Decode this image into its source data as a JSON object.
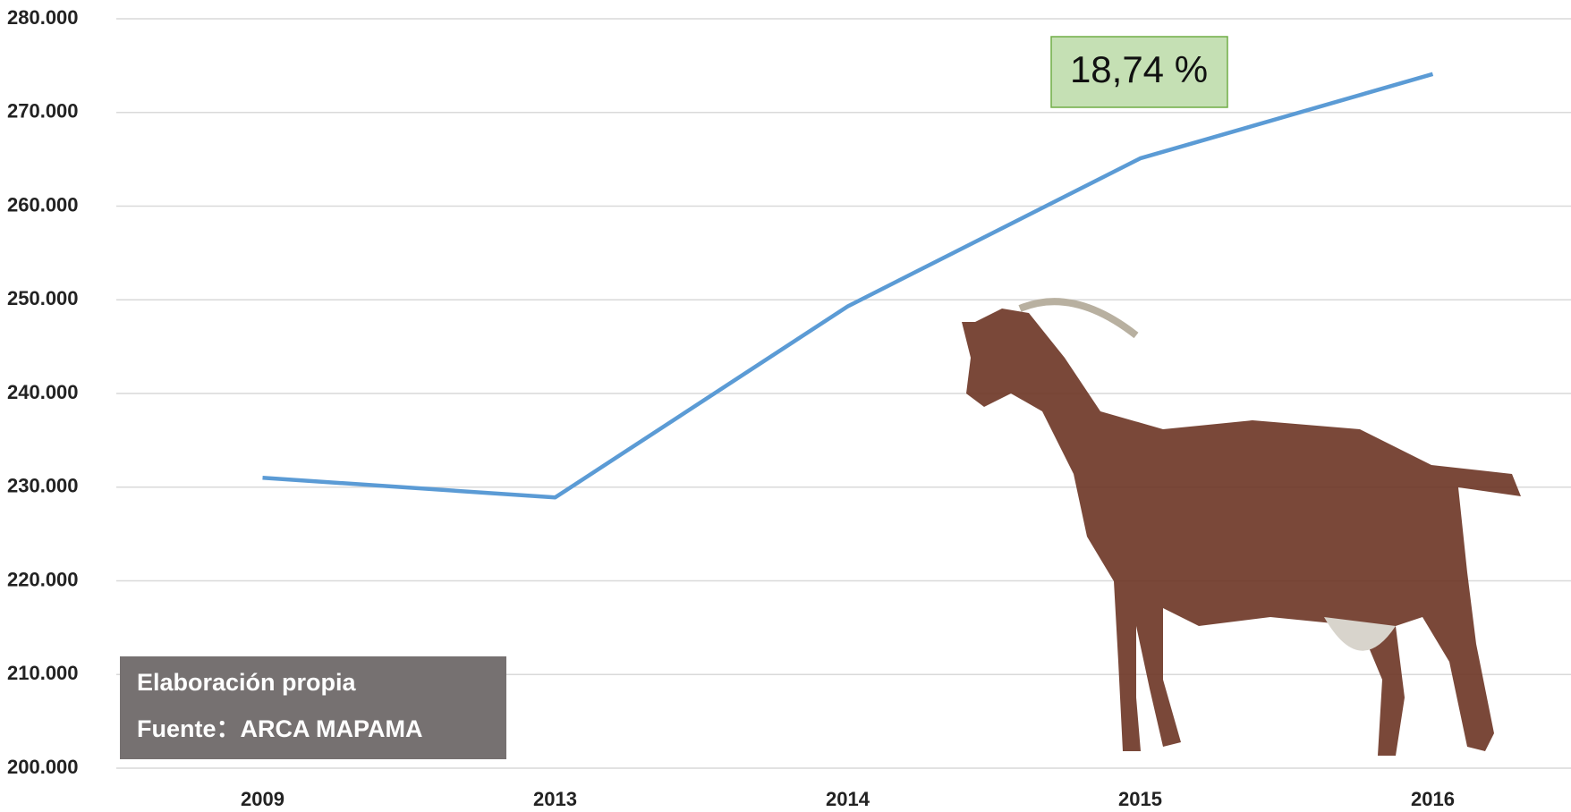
{
  "chart_data": {
    "type": "line",
    "categories": [
      "2009",
      "2013",
      "2014",
      "2015",
      "2016"
    ],
    "values": [
      231000,
      228900,
      249300,
      265100,
      274100
    ],
    "color": "#5b9bd5",
    "ylim": [
      200000,
      280000
    ],
    "yticks": [
      {
        "value": 200000,
        "label": "200.000"
      },
      {
        "value": 210000,
        "label": "210.000"
      },
      {
        "value": 220000,
        "label": "220.000"
      },
      {
        "value": 230000,
        "label": "230.000"
      },
      {
        "value": 240000,
        "label": "240.000"
      },
      {
        "value": 250000,
        "label": "250.000"
      },
      {
        "value": 260000,
        "label": "260.000"
      },
      {
        "value": 270000,
        "label": "270.000"
      },
      {
        "value": 280000,
        "label": "280.000"
      }
    ],
    "grid": true,
    "annotation": "18,74 %",
    "source_lines": [
      "Elaboración propia",
      "Fuente：ARCA MAPAMA"
    ]
  }
}
